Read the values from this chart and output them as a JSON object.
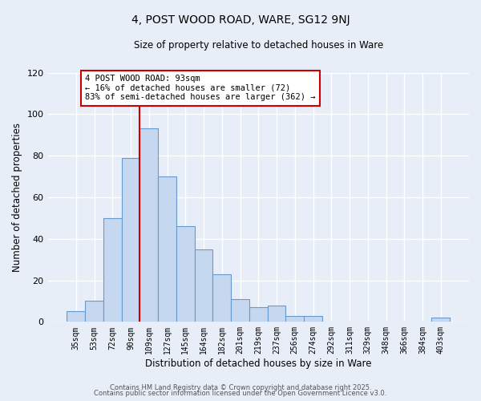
{
  "title": "4, POST WOOD ROAD, WARE, SG12 9NJ",
  "subtitle": "Size of property relative to detached houses in Ware",
  "xlabel": "Distribution of detached houses by size in Ware",
  "ylabel": "Number of detached properties",
  "bar_labels": [
    "35sqm",
    "53sqm",
    "72sqm",
    "90sqm",
    "109sqm",
    "127sqm",
    "145sqm",
    "164sqm",
    "182sqm",
    "201sqm",
    "219sqm",
    "237sqm",
    "256sqm",
    "274sqm",
    "292sqm",
    "311sqm",
    "329sqm",
    "348sqm",
    "366sqm",
    "384sqm",
    "403sqm"
  ],
  "bar_values": [
    5,
    10,
    50,
    79,
    93,
    70,
    46,
    35,
    23,
    11,
    7,
    8,
    3,
    3,
    0,
    0,
    0,
    0,
    0,
    0,
    2
  ],
  "bar_color": "#c5d8f0",
  "bar_edgecolor": "#6699cc",
  "vline_color": "#cc0000",
  "ylim": [
    0,
    120
  ],
  "yticks": [
    0,
    20,
    40,
    60,
    80,
    100,
    120
  ],
  "annotation_title": "4 POST WOOD ROAD: 93sqm",
  "annotation_line1": "← 16% of detached houses are smaller (72)",
  "annotation_line2": "83% of semi-detached houses are larger (362) →",
  "annotation_box_color": "#ffffff",
  "annotation_box_edgecolor": "#cc0000",
  "footer_line1": "Contains HM Land Registry data © Crown copyright and database right 2025.",
  "footer_line2": "Contains public sector information licensed under the Open Government Licence v3.0.",
  "background_color": "#e8eef8",
  "grid_color": "#ffffff"
}
